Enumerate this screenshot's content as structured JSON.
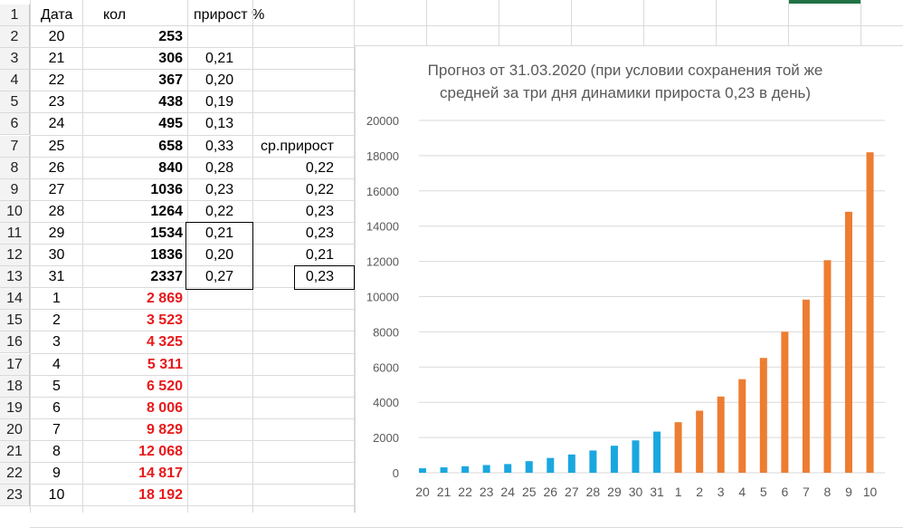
{
  "sheet": {
    "header_row": {
      "rownum": "1",
      "col_a": "Дата",
      "col_b": "кол",
      "col_c": "прирост %"
    },
    "rows": [
      {
        "n": "2",
        "date": "20",
        "kol": "253",
        "pr": "",
        "avg": ""
      },
      {
        "n": "3",
        "date": "21",
        "kol": "306",
        "pr": "0,21",
        "avg": ""
      },
      {
        "n": "4",
        "date": "22",
        "kol": "367",
        "pr": "0,20",
        "avg": ""
      },
      {
        "n": "5",
        "date": "23",
        "kol": "438",
        "pr": "0,19",
        "avg": ""
      },
      {
        "n": "6",
        "date": "24",
        "kol": "495",
        "pr": "0,13",
        "avg": ""
      },
      {
        "n": "7",
        "date": "25",
        "kol": "658",
        "pr": "0,33",
        "avg": "ср.прирост"
      },
      {
        "n": "8",
        "date": "26",
        "kol": "840",
        "pr": "0,28",
        "avg": "0,22"
      },
      {
        "n": "9",
        "date": "27",
        "kol": "1036",
        "pr": "0,23",
        "avg": "0,22"
      },
      {
        "n": "10",
        "date": "28",
        "kol": "1264",
        "pr": "0,22",
        "avg": "0,23"
      },
      {
        "n": "11",
        "date": "29",
        "kol": "1534",
        "pr": "0,21",
        "avg": "0,23"
      },
      {
        "n": "12",
        "date": "30",
        "kol": "1836",
        "pr": "0,20",
        "avg": "0,21"
      },
      {
        "n": "13",
        "date": "31",
        "kol": "2337",
        "pr": "0,27",
        "avg": "0,23"
      },
      {
        "n": "14",
        "date": "1",
        "kol": "2 869",
        "pr": "",
        "avg": "",
        "forecast": true
      },
      {
        "n": "15",
        "date": "2",
        "kol": "3 523",
        "pr": "",
        "avg": "",
        "forecast": true
      },
      {
        "n": "16",
        "date": "3",
        "kol": "4 325",
        "pr": "",
        "avg": "",
        "forecast": true
      },
      {
        "n": "17",
        "date": "4",
        "kol": "5 311",
        "pr": "",
        "avg": "",
        "forecast": true
      },
      {
        "n": "18",
        "date": "5",
        "kol": "6 520",
        "pr": "",
        "avg": "",
        "forecast": true
      },
      {
        "n": "19",
        "date": "6",
        "kol": "8 006",
        "pr": "",
        "avg": "",
        "forecast": true
      },
      {
        "n": "20",
        "date": "7",
        "kol": "9 829",
        "pr": "",
        "avg": "",
        "forecast": true
      },
      {
        "n": "21",
        "date": "8",
        "kol": "12 068",
        "pr": "",
        "avg": "",
        "forecast": true
      },
      {
        "n": "22",
        "date": "9",
        "kol": "14 817",
        "pr": "",
        "avg": "",
        "forecast": true
      },
      {
        "n": "23",
        "date": "10",
        "kol": "18 192",
        "pr": "",
        "avg": "",
        "forecast": true
      }
    ]
  },
  "colors": {
    "actual": "#1aa7e0",
    "forecast": "#ed7d31",
    "forecast_text": "#e8191b",
    "axis_text": "#595959",
    "gridline": "#d9d9d9"
  },
  "chart_data": {
    "type": "bar",
    "title": "Прогноз от 31.03.2020 (при условии сохранения той же средней за три дня динамики прироста 0,23 в день)",
    "title_lines": [
      "Прогноз от 31.03.2020 (при условии сохранения той же",
      "средней за три дня динамики прироста 0,23 в день)"
    ],
    "xlabel": "",
    "ylabel": "",
    "ylim": [
      0,
      20000
    ],
    "yticks": [
      0,
      2000,
      4000,
      6000,
      8000,
      10000,
      12000,
      14000,
      16000,
      18000,
      20000
    ],
    "grid": true,
    "categories": [
      "20",
      "21",
      "22",
      "23",
      "24",
      "25",
      "26",
      "27",
      "28",
      "29",
      "30",
      "31",
      "1",
      "2",
      "3",
      "4",
      "5",
      "6",
      "7",
      "8",
      "9",
      "10"
    ],
    "values": [
      253,
      306,
      367,
      438,
      495,
      658,
      840,
      1036,
      1264,
      1534,
      1836,
      2337,
      2869,
      3523,
      4325,
      5311,
      6520,
      8006,
      9829,
      12068,
      14817,
      18192
    ],
    "bar_colors": [
      "#1aa7e0",
      "#1aa7e0",
      "#1aa7e0",
      "#1aa7e0",
      "#1aa7e0",
      "#1aa7e0",
      "#1aa7e0",
      "#1aa7e0",
      "#1aa7e0",
      "#1aa7e0",
      "#1aa7e0",
      "#1aa7e0",
      "#ed7d31",
      "#ed7d31",
      "#ed7d31",
      "#ed7d31",
      "#ed7d31",
      "#ed7d31",
      "#ed7d31",
      "#ed7d31",
      "#ed7d31",
      "#ed7d31"
    ]
  }
}
